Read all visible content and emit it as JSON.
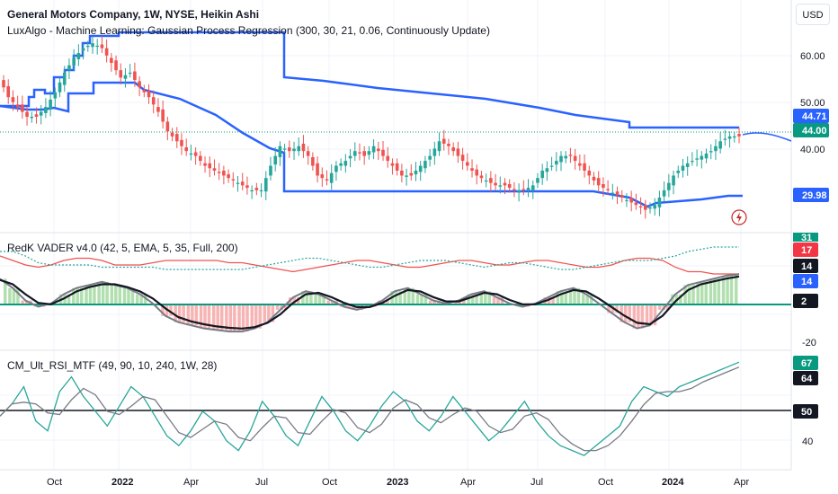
{
  "header": {
    "title": "General Motors Company, 1W, NYSE, Heikin Ashi",
    "currency": "USD"
  },
  "indicators": {
    "luxalgo": "LuxAlgo - Machine Learning: Gaussian Process Regression (300, 30, 21, 0.06, Continuously Update)",
    "vader": "RedK VADER v4.0 (42, 5, EMA, 5, 35, Full, 200)",
    "rsi": "CM_Ult_RSI_MTF (49, 90, 10, 240, 1W, 28)"
  },
  "colors": {
    "up": "#26a69a",
    "down": "#ef5350",
    "envelope": "#2962ff",
    "grid": "#f0f3fa",
    "tag_blue": "#2962ff",
    "tag_green": "#089981",
    "tag_red": "#f23645",
    "tag_dark": "#131722"
  },
  "chart_data": [
    {
      "type": "candlestick",
      "name": "price",
      "price_axis_ticks": [
        "60.00",
        "50.00",
        "40.00"
      ],
      "price_axis_range": [
        26,
        70
      ],
      "tags": [
        {
          "value": 44.71,
          "label": "44.71",
          "color": "tag_blue"
        },
        {
          "value": 44.0,
          "label": "44.00",
          "color": "tag_green"
        },
        {
          "value": 29.98,
          "label": "29.98",
          "color": "tag_blue"
        }
      ],
      "close_series_approx": [
        56,
        52,
        50,
        48,
        48,
        50,
        53,
        57,
        60,
        62,
        63,
        62,
        59,
        56,
        57,
        54,
        52,
        49,
        45,
        43,
        41,
        40,
        38,
        37,
        36,
        35,
        34,
        33,
        33,
        38,
        42,
        41,
        42,
        40,
        36,
        35,
        38,
        39,
        41,
        40,
        42,
        40,
        38,
        36,
        36,
        38,
        40,
        43,
        42,
        40,
        38,
        36,
        35,
        34,
        34,
        33,
        33,
        34,
        37,
        38,
        40,
        40,
        38,
        36,
        34,
        33,
        32,
        31,
        30,
        29,
        30,
        33,
        36,
        38,
        39,
        40,
        41,
        43,
        44
      ]
    },
    {
      "type": "line",
      "name": "vader",
      "axis_ticks": [
        "-20"
      ],
      "tags": [
        {
          "label": "31",
          "color": "tag_green"
        },
        {
          "label": "17",
          "color": "tag_red"
        },
        {
          "label": "14",
          "color": "tag_dark"
        },
        {
          "label": "14",
          "color": "tag_blue"
        },
        {
          "label": "2",
          "color": "tag_dark"
        }
      ]
    },
    {
      "type": "line",
      "name": "rsi",
      "axis_ticks": [
        "50",
        "40"
      ],
      "axis_range": [
        30,
        75
      ],
      "tags": [
        {
          "label": "67",
          "color": "tag_green"
        },
        {
          "label": "64",
          "color": "tag_dark"
        },
        {
          "label": "50",
          "color": "tag_dark"
        }
      ]
    }
  ],
  "time_axis": [
    "Oct",
    "2022",
    "Apr",
    "Jul",
    "Oct",
    "2023",
    "Apr",
    "Jul",
    "Oct",
    "2024",
    "Apr"
  ]
}
